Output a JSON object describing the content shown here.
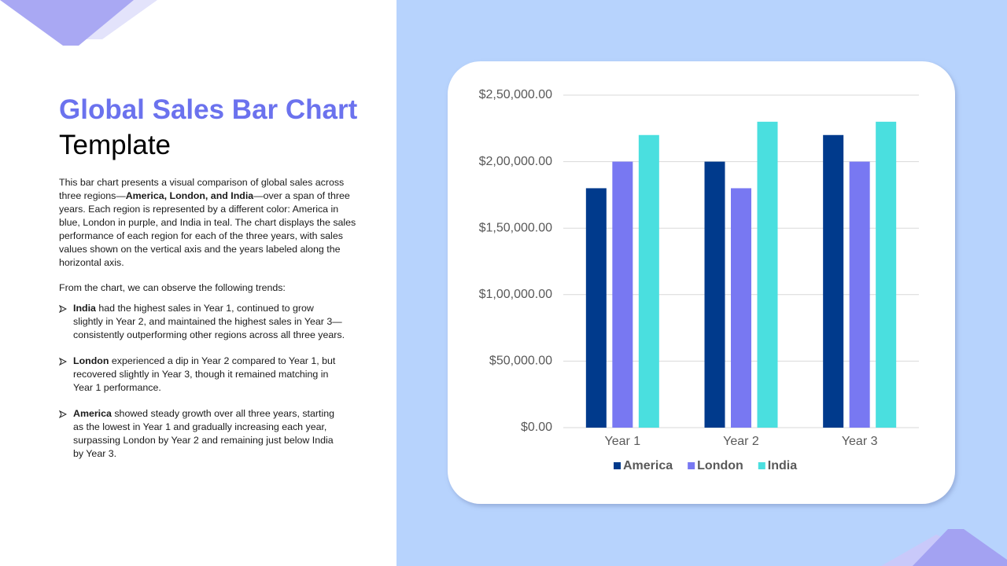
{
  "title": {
    "highlight": "Global Sales Bar Chart",
    "rest": "Template"
  },
  "intro": {
    "before": "This bar chart presents a visual comparison of global sales across three regions—",
    "bold": "America, London, and India",
    "after": "—over a span of three years. Each region is represented by a different color: America in blue, London in purple, and India in teal. The chart displays the sales performance of each region for each of the three years, with sales values shown on the vertical axis and the years labeled along the horizontal axis."
  },
  "trends_intro": "From the chart, we can observe the following trends:",
  "trends": [
    {
      "bold": "India",
      "text": "had the highest sales in Year 1, continued to grow slightly in Year 2, and maintained the highest sales in Year 3—consistently outperforming other regions across all three years."
    },
    {
      "bold": "London",
      "text": "experienced a dip in Year 2 compared to Year 1, but recovered slightly in Year 3, though it remained matching in Year 1 performance."
    },
    {
      "bold": "America",
      "text": "showed steady growth over all three years, starting as the lowest in Year 1 and gradually increasing each year, surpassing London by Year 2 and remaining just below India by Year 3."
    }
  ],
  "chart_data": {
    "type": "bar",
    "categories": [
      "Year 1",
      "Year 2",
      "Year 3"
    ],
    "series": [
      {
        "name": "America",
        "color": "#003a8c",
        "values": [
          180000,
          200000,
          220000
        ]
      },
      {
        "name": "London",
        "color": "#7878f2",
        "values": [
          200000,
          180000,
          200000
        ]
      },
      {
        "name": "India",
        "color": "#4adfdf",
        "values": [
          220000,
          230000,
          230000
        ]
      }
    ],
    "ylim": [
      0,
      250000
    ],
    "yticks": [
      {
        "value": 0,
        "label": "$0.00"
      },
      {
        "value": 50000,
        "label": "$50,000.00"
      },
      {
        "value": 100000,
        "label": "$1,00,000.00"
      },
      {
        "value": 150000,
        "label": "$1,50,000.00"
      },
      {
        "value": 200000,
        "label": "$2,00,000.00"
      },
      {
        "value": 250000,
        "label": "$2,50,000.00"
      }
    ],
    "grid": true,
    "legend": "bottom"
  }
}
